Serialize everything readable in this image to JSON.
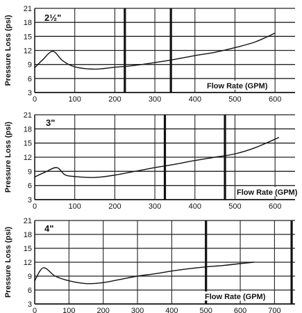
{
  "chart_data": [
    {
      "type": "line",
      "title": "2½\"",
      "ylabel": "Pressure Loss (psi)",
      "xlabel": "Flow Rate (GPM)",
      "xlim": [
        0,
        650
      ],
      "ylim": [
        3,
        21
      ],
      "xticks": [
        0,
        100,
        200,
        300,
        400,
        500,
        600
      ],
      "yticks": [
        3,
        6,
        9,
        12,
        15,
        18,
        21
      ],
      "xtick_labels": [
        "0",
        "100",
        "200",
        "300",
        "400",
        "500",
        "600"
      ],
      "ytick_labels": [
        "3",
        "6",
        "9",
        "12",
        "15",
        "18",
        "21"
      ],
      "reference_lines_x": [
        225,
        340
      ],
      "grid": true,
      "series": [
        {
          "x": [
            0,
            20,
            45,
            70,
            100,
            150,
            200,
            250,
            300,
            350,
            400,
            450,
            500,
            550,
            600
          ],
          "y": [
            8.3,
            10.0,
            11.8,
            9.8,
            8.5,
            8.0,
            8.4,
            8.8,
            9.4,
            10.1,
            10.9,
            11.6,
            12.6,
            13.8,
            15.7
          ]
        }
      ]
    },
    {
      "type": "line",
      "title": "3\"",
      "ylabel": "Pressure Loss (psi)",
      "xlabel": "Flow Rate (GPM)",
      "xlim": [
        0,
        650
      ],
      "ylim": [
        3,
        21
      ],
      "xticks": [
        0,
        100,
        200,
        300,
        400,
        500,
        600
      ],
      "yticks": [
        3,
        6,
        9,
        12,
        15,
        18,
        21
      ],
      "xtick_labels": [
        "0",
        "100",
        "200",
        "300",
        "400",
        "500",
        "600"
      ],
      "ytick_labels": [
        "3",
        "6",
        "9",
        "12",
        "15",
        "18",
        "21"
      ],
      "reference_lines_x": [
        325,
        475
      ],
      "grid": true,
      "series": [
        {
          "x": [
            0,
            25,
            55,
            75,
            100,
            150,
            200,
            250,
            300,
            350,
            400,
            450,
            500,
            550,
            610
          ],
          "y": [
            7.8,
            8.8,
            9.8,
            8.3,
            7.9,
            7.7,
            8.2,
            9.0,
            9.8,
            10.5,
            11.3,
            12.0,
            12.7,
            14.0,
            16.2
          ]
        }
      ]
    },
    {
      "type": "line",
      "title": "4\"",
      "ylabel": "Pressure Loss (psi)",
      "xlabel": "Flow Rate (GPM)",
      "xlim": [
        0,
        760
      ],
      "ylim": [
        3,
        21
      ],
      "xticks": [
        0,
        100,
        200,
        300,
        400,
        500,
        600,
        700
      ],
      "yticks": [
        3,
        6,
        9,
        12,
        15,
        18,
        21
      ],
      "xtick_labels": [
        "0",
        "100",
        "200",
        "300",
        "400",
        "500",
        "600",
        "700"
      ],
      "ytick_labels": [
        "3",
        "6",
        "9",
        "12",
        "15",
        "18",
        "21"
      ],
      "reference_lines_x": [
        500,
        750
      ],
      "grid": true,
      "series": [
        {
          "x": [
            0,
            25,
            60,
            100,
            150,
            200,
            250,
            300,
            350,
            400,
            450,
            500,
            550,
            600,
            640
          ],
          "y": [
            8.0,
            10.8,
            9.0,
            8.0,
            7.4,
            7.6,
            8.3,
            9.0,
            9.5,
            10.1,
            10.6,
            11.0,
            11.3,
            11.7,
            12.0
          ]
        }
      ]
    }
  ]
}
